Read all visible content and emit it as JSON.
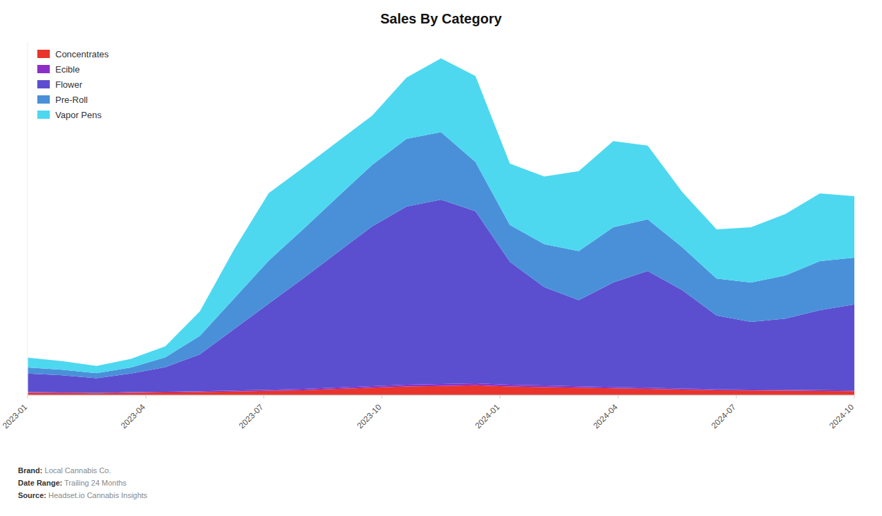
{
  "chart_data": {
    "type": "area",
    "stacked": true,
    "title": "Sales By Category",
    "x": [
      0,
      1,
      2,
      3,
      4,
      5,
      6,
      7,
      8,
      9,
      10,
      11,
      12,
      13,
      14,
      15,
      16,
      17,
      18,
      19,
      20,
      21,
      22,
      23,
      24
    ],
    "xlim": [
      0,
      24
    ],
    "xticks": [
      {
        "value": 0,
        "label": "2023-01"
      },
      {
        "value": 3.4285714285714284,
        "label": "2023-04"
      },
      {
        "value": 6.857142857142857,
        "label": "2023-07"
      },
      {
        "value": 10.285714285714286,
        "label": "2023-10"
      },
      {
        "value": 13.714285714285714,
        "label": "2024-01"
      },
      {
        "value": 17.142857142857142,
        "label": "2024-04"
      },
      {
        "value": 20.571428571428573,
        "label": "2024-07"
      },
      {
        "value": 24,
        "label": "2024-10"
      }
    ],
    "ylim": [
      0,
      28770
    ],
    "tick_labels": "x",
    "grid": false,
    "legend": "upper left",
    "series": [
      {
        "name": "Concentrates",
        "color": "#e8342a",
        "values": [
          200,
          180,
          150,
          200,
          220,
          250,
          300,
          350,
          400,
          500,
          600,
          700,
          750,
          800,
          700,
          650,
          600,
          550,
          500,
          450,
          400,
          380,
          360,
          340,
          320
        ]
      },
      {
        "name": "Ecible",
        "color": "#8b2fc9",
        "values": [
          50,
          40,
          30,
          50,
          60,
          70,
          80,
          90,
          100,
          120,
          130,
          140,
          150,
          160,
          140,
          130,
          120,
          110,
          100,
          90,
          80,
          75,
          70,
          65,
          60
        ]
      },
      {
        "name": "Flower",
        "color": "#5b4fcf",
        "values": [
          1500,
          1400,
          1200,
          1500,
          2000,
          3000,
          5000,
          7000,
          9000,
          11000,
          13000,
          14500,
          15000,
          14000,
          10000,
          8000,
          7000,
          8500,
          9500,
          8000,
          6000,
          5500,
          5800,
          6500,
          7000
        ]
      },
      {
        "name": "Pre-Roll",
        "color": "#4a90d9",
        "values": [
          500,
          450,
          400,
          500,
          800,
          1500,
          2500,
          3500,
          4000,
          4500,
          5000,
          5500,
          5500,
          4000,
          3000,
          3500,
          4000,
          4500,
          4200,
          3500,
          3000,
          3200,
          3500,
          4000,
          3800
        ]
      },
      {
        "name": "Vapor Pens",
        "color": "#4dd8f0",
        "values": [
          800,
          700,
          600,
          700,
          900,
          2000,
          4000,
          5500,
          5000,
          4500,
          4000,
          5000,
          6000,
          7000,
          5000,
          5500,
          6500,
          7000,
          6000,
          4500,
          4000,
          4500,
          5000,
          5500,
          5000
        ]
      }
    ],
    "annotations": [
      "Brand: Local Cannabis Co.",
      "Date Range: Trailing 24 Months",
      "Source: Headset.io Cannabis Insights"
    ]
  }
}
